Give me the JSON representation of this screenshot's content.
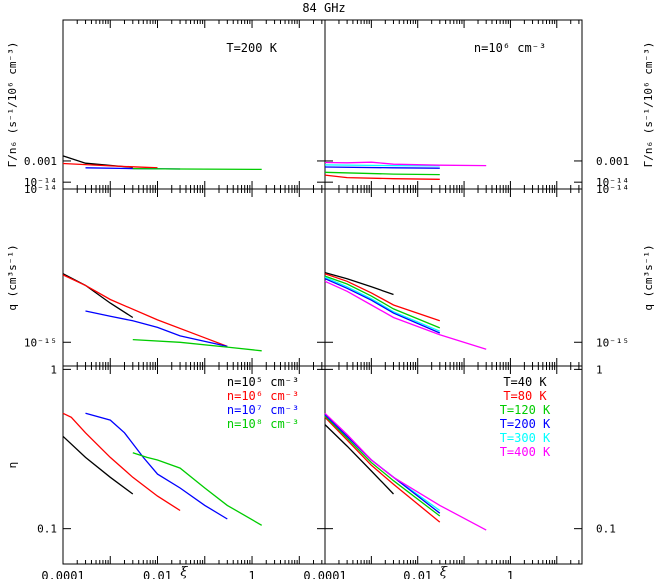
{
  "figure_title": "84 GHz",
  "chart_data": [
    {
      "type": "line",
      "panel": "top-left",
      "annotation": "T=200 K",
      "ylabel": "Γ/n₆ (s⁻¹/10⁶ cm⁻³)",
      "xscale": "log",
      "yscale": "log",
      "xlim": [
        0.0001,
        35
      ],
      "ylim": [
        0.0004,
        0.1
      ],
      "yticks": [
        "0.001",
        "10⁻¹⁴"
      ],
      "series": [
        {
          "color": "#000000",
          "x": [
            0.0001,
            0.0003,
            0.003
          ],
          "y": [
            0.00118,
            0.00093,
            0.00081
          ]
        },
        {
          "color": "#ff0000",
          "x": [
            0.0001,
            0.001,
            0.01
          ],
          "y": [
            0.00092,
            0.00085,
            0.0008
          ]
        },
        {
          "color": "#0000ff",
          "x": [
            0.0003,
            0.003,
            0.03
          ],
          "y": [
            0.0008,
            0.00078,
            0.00077
          ]
        },
        {
          "color": "#00cc00",
          "x": [
            0.003,
            0.03,
            1.6
          ],
          "y": [
            0.00078,
            0.00077,
            0.00076
          ]
        }
      ]
    },
    {
      "type": "line",
      "panel": "top-right",
      "annotation": "n=10⁶ cm⁻³",
      "ylabel": "Γ/n₆ (s⁻¹/10⁶ cm⁻³)",
      "xscale": "log",
      "yscale": "log",
      "xlim": [
        0.0001,
        35
      ],
      "ylim": [
        0.0004,
        0.1
      ],
      "yticks": [
        "0.001",
        "10⁻¹⁴"
      ],
      "series": [
        {
          "color": "#ff0000",
          "x": [
            0.0001,
            0.0003,
            0.003,
            0.03
          ],
          "y": [
            0.00063,
            0.00058,
            0.00056,
            0.00055
          ]
        },
        {
          "color": "#00cc00",
          "x": [
            0.0001,
            0.003,
            0.03
          ],
          "y": [
            0.00069,
            0.00065,
            0.00064
          ]
        },
        {
          "color": "#0000ff",
          "x": [
            0.0001,
            0.003,
            0.03
          ],
          "y": [
            0.00082,
            0.0008,
            0.00079
          ]
        },
        {
          "color": "#00ffff",
          "x": [
            0.0001,
            0.003,
            0.03
          ],
          "y": [
            0.00088,
            0.00086,
            0.00085
          ]
        },
        {
          "color": "#ff00ff",
          "x": [
            0.0001,
            0.0003,
            0.001,
            0.003,
            0.03,
            0.3
          ],
          "y": [
            0.00095,
            0.00094,
            0.00096,
            0.0009,
            0.00087,
            0.00086
          ]
        }
      ]
    },
    {
      "type": "line",
      "panel": "middle-left",
      "ylabel": "q (cm³s⁻¹)",
      "xscale": "log",
      "yscale": "log",
      "xlim": [
        0.0001,
        35
      ],
      "ylim": [
        7e-16,
        1e-14
      ],
      "yticks": [
        "10⁻¹⁵",
        "10⁻¹⁴"
      ],
      "series": [
        {
          "color": "#000000",
          "x": [
            0.0001,
            0.0003,
            0.001,
            0.003
          ],
          "y": [
            2.8e-15,
            2.35e-15,
            1.8e-15,
            1.45e-15
          ]
        },
        {
          "color": "#ff0000",
          "x": [
            0.0001,
            0.0003,
            0.001,
            0.01,
            0.1,
            0.3
          ],
          "y": [
            2.75e-15,
            2.35e-15,
            1.9e-15,
            1.4e-15,
            1.07e-15,
            9.4e-16
          ]
        },
        {
          "color": "#0000ff",
          "x": [
            0.0003,
            0.001,
            0.003,
            0.01,
            0.03,
            0.3
          ],
          "y": [
            1.6e-15,
            1.48e-15,
            1.38e-15,
            1.25e-15,
            1.1e-15,
            9.4e-16
          ]
        },
        {
          "color": "#00cc00",
          "x": [
            0.003,
            0.03,
            0.3,
            1.6
          ],
          "y": [
            1.04e-15,
            1e-15,
            9.3e-16,
            8.8e-16
          ]
        }
      ]
    },
    {
      "type": "line",
      "panel": "middle-right",
      "ylabel": "q (cm³s⁻¹)",
      "xscale": "log",
      "yscale": "log",
      "xlim": [
        0.0001,
        35
      ],
      "ylim": [
        7e-16,
        1e-14
      ],
      "yticks": [
        "10⁻¹⁵",
        "10⁻¹⁴"
      ],
      "series": [
        {
          "color": "#000000",
          "x": [
            0.0001,
            0.0003,
            0.001,
            0.003
          ],
          "y": [
            2.85e-15,
            2.6e-15,
            2.3e-15,
            2.05e-15
          ]
        },
        {
          "color": "#ff0000",
          "x": [
            0.0001,
            0.0003,
            0.001,
            0.003,
            0.03
          ],
          "y": [
            2.8e-15,
            2.5e-15,
            2.1e-15,
            1.75e-15,
            1.38e-15
          ]
        },
        {
          "color": "#00cc00",
          "x": [
            0.0001,
            0.0003,
            0.001,
            0.003,
            0.03
          ],
          "y": [
            2.7e-15,
            2.4e-15,
            2e-15,
            1.65e-15,
            1.24e-15
          ]
        },
        {
          "color": "#00ffff",
          "x": [
            0.0001,
            0.0003,
            0.001,
            0.003,
            0.03
          ],
          "y": [
            2.65e-15,
            2.3e-15,
            1.92e-15,
            1.58e-15,
            1.18e-15
          ]
        },
        {
          "color": "#0000ff",
          "x": [
            0.0001,
            0.0003,
            0.001,
            0.003,
            0.03
          ],
          "y": [
            2.6e-15,
            2.25e-15,
            1.88e-15,
            1.55e-15,
            1.15e-15
          ]
        },
        {
          "color": "#ff00ff",
          "x": [
            0.0001,
            0.0003,
            0.001,
            0.003,
            0.03,
            0.3
          ],
          "y": [
            2.5e-15,
            2.15e-15,
            1.75e-15,
            1.45e-15,
            1.12e-15,
            9e-16
          ]
        }
      ]
    },
    {
      "type": "line",
      "panel": "bottom-left",
      "ylabel": "η",
      "xlabel": "ξ",
      "xscale": "log",
      "yscale": "log",
      "xlim": [
        0.0001,
        35
      ],
      "ylim": [
        0.06,
        1.05
      ],
      "xticks": [
        "0.0001",
        "0.01",
        "1"
      ],
      "yticks": [
        "0.1",
        "1"
      ],
      "legend": [
        {
          "label": "n=10⁵ cm⁻³",
          "color": "#000000"
        },
        {
          "label": "n=10⁶ cm⁻³",
          "color": "#ff0000"
        },
        {
          "label": "n=10⁷ cm⁻³",
          "color": "#0000ff"
        },
        {
          "label": "n=10⁸ cm⁻³",
          "color": "#00cc00"
        }
      ],
      "series": [
        {
          "color": "#000000",
          "x": [
            0.0001,
            0.0003,
            0.001,
            0.003
          ],
          "y": [
            0.38,
            0.28,
            0.21,
            0.165
          ]
        },
        {
          "color": "#ff0000",
          "x": [
            0.0001,
            0.00015,
            0.0003,
            0.001,
            0.003,
            0.01,
            0.03
          ],
          "y": [
            0.53,
            0.5,
            0.4,
            0.28,
            0.21,
            0.16,
            0.13
          ]
        },
        {
          "color": "#0000ff",
          "x": [
            0.0003,
            0.001,
            0.002,
            0.005,
            0.01,
            0.03,
            0.1,
            0.3
          ],
          "y": [
            0.53,
            0.48,
            0.4,
            0.28,
            0.22,
            0.18,
            0.14,
            0.115
          ]
        },
        {
          "color": "#00cc00",
          "x": [
            0.003,
            0.006,
            0.01,
            0.03,
            0.1,
            0.3,
            1.6
          ],
          "y": [
            0.3,
            0.28,
            0.27,
            0.24,
            0.18,
            0.14,
            0.105
          ]
        }
      ]
    },
    {
      "type": "line",
      "panel": "bottom-right",
      "xlabel": "ξ",
      "xscale": "log",
      "yscale": "log",
      "xlim": [
        0.0001,
        35
      ],
      "ylim": [
        0.06,
        1.05
      ],
      "xticks": [
        "0.0001",
        "0.01",
        "1"
      ],
      "yticks": [
        "0.1",
        "1"
      ],
      "legend": [
        {
          "label": "T=40 K",
          "color": "#000000"
        },
        {
          "label": "T=80 K",
          "color": "#ff0000"
        },
        {
          "label": "T=120 K",
          "color": "#00cc00"
        },
        {
          "label": "T=200 K",
          "color": "#0000ff"
        },
        {
          "label": "T=300 K",
          "color": "#00ffff"
        },
        {
          "label": "T=400 K",
          "color": "#ff00ff"
        }
      ],
      "series": [
        {
          "color": "#000000",
          "x": [
            0.0001,
            0.0003,
            0.001,
            0.003
          ],
          "y": [
            0.45,
            0.33,
            0.23,
            0.165
          ]
        },
        {
          "color": "#ff0000",
          "x": [
            0.0001,
            0.0003,
            0.001,
            0.003,
            0.03
          ],
          "y": [
            0.5,
            0.36,
            0.25,
            0.19,
            0.11
          ]
        },
        {
          "color": "#00cc00",
          "x": [
            0.0001,
            0.0003,
            0.001,
            0.003,
            0.03
          ],
          "y": [
            0.51,
            0.37,
            0.26,
            0.2,
            0.12
          ]
        },
        {
          "color": "#00ffff",
          "x": [
            0.0001,
            0.0003,
            0.001,
            0.003,
            0.03
          ],
          "y": [
            0.52,
            0.38,
            0.27,
            0.21,
            0.13
          ]
        },
        {
          "color": "#0000ff",
          "x": [
            0.0001,
            0.0003,
            0.001,
            0.003,
            0.03
          ],
          "y": [
            0.52,
            0.38,
            0.27,
            0.21,
            0.125
          ]
        },
        {
          "color": "#ff00ff",
          "x": [
            0.0001,
            0.0003,
            0.001,
            0.003,
            0.03,
            0.3
          ],
          "y": [
            0.53,
            0.39,
            0.27,
            0.21,
            0.14,
            0.098
          ]
        }
      ]
    }
  ]
}
